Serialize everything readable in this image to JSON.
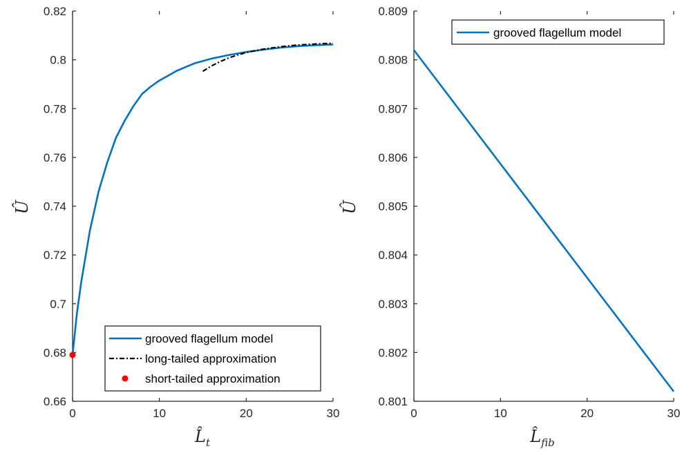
{
  "colors": {
    "grooved": "#0072BD",
    "long_tailed": "#000000",
    "short_tailed": "#FF0000",
    "axis": "#262626"
  },
  "chart_data": [
    {
      "type": "line",
      "xlabel": "L̂",
      "xlabel_sub": "t",
      "ylabel": "Û",
      "xlim": [
        0,
        30
      ],
      "ylim": [
        0.66,
        0.82
      ],
      "xticks": [
        0,
        10,
        20,
        30
      ],
      "xtick_labels": [
        "0",
        "10",
        "20",
        "30"
      ],
      "yticks": [
        0.66,
        0.68,
        0.7,
        0.72,
        0.74,
        0.76,
        0.78,
        0.8,
        0.82
      ],
      "ytick_labels": [
        "0.66",
        "0.68",
        "0.7",
        "0.72",
        "0.74",
        "0.76",
        "0.78",
        "0.8",
        "0.82"
      ],
      "grid": false,
      "legend_position": "bottom-right",
      "series": [
        {
          "name": "grooved flagellum model",
          "style": "solid",
          "color": "#0072BD",
          "x": [
            0,
            0.5,
            1,
            2,
            3,
            4,
            5,
            6,
            7,
            8,
            9,
            10,
            12,
            14,
            16,
            18,
            20,
            22,
            24,
            26,
            28,
            30
          ],
          "y": [
            0.679,
            0.696,
            0.709,
            0.73,
            0.746,
            0.758,
            0.768,
            0.775,
            0.781,
            0.786,
            0.789,
            0.7915,
            0.7955,
            0.7985,
            0.8005,
            0.802,
            0.8032,
            0.8042,
            0.805,
            0.8056,
            0.806,
            0.8063
          ]
        },
        {
          "name": "long-tailed approximation",
          "style": "dash-dot",
          "color": "#000000",
          "x": [
            15,
            16,
            17,
            18,
            19,
            20,
            22,
            24,
            26,
            28,
            30
          ],
          "y": [
            0.7953,
            0.7975,
            0.7993,
            0.8008,
            0.802,
            0.803,
            0.8044,
            0.8054,
            0.8061,
            0.8065,
            0.8068
          ]
        },
        {
          "name": "short-tailed approximation",
          "style": "marker",
          "color": "#FF0000",
          "x": [
            0
          ],
          "y": [
            0.679
          ]
        }
      ]
    },
    {
      "type": "line",
      "xlabel": "L̂",
      "xlabel_sub": "fib",
      "ylabel": "Û",
      "xlim": [
        0,
        30
      ],
      "ylim": [
        0.801,
        0.809
      ],
      "xticks": [
        0,
        10,
        20,
        30
      ],
      "xtick_labels": [
        "0",
        "10",
        "20",
        "30"
      ],
      "yticks": [
        0.801,
        0.802,
        0.803,
        0.804,
        0.805,
        0.806,
        0.807,
        0.808,
        0.809
      ],
      "ytick_labels": [
        "0.801",
        "0.802",
        "0.803",
        "0.804",
        "0.805",
        "0.806",
        "0.807",
        "0.808",
        "0.809"
      ],
      "grid": false,
      "legend_position": "top-right",
      "series": [
        {
          "name": "grooved flagellum model",
          "style": "solid",
          "color": "#0072BD",
          "x": [
            0,
            30
          ],
          "y": [
            0.8082,
            0.8012
          ]
        }
      ]
    }
  ]
}
